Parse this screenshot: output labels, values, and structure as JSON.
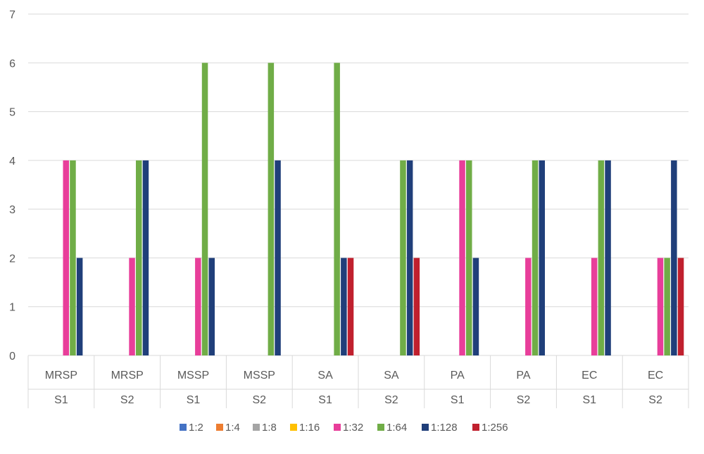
{
  "chart_data": {
    "type": "bar",
    "title": "",
    "xlabel": "",
    "ylabel": "",
    "ylim": [
      0,
      7
    ],
    "yticks": [
      0,
      1,
      2,
      3,
      4,
      5,
      6,
      7
    ],
    "grid": true,
    "legend_position": "bottom",
    "categories": [
      {
        "group": "MRSP",
        "sub": "S1"
      },
      {
        "group": "MRSP",
        "sub": "S2"
      },
      {
        "group": "MSSP",
        "sub": "S1"
      },
      {
        "group": "MSSP",
        "sub": "S2"
      },
      {
        "group": "SA",
        "sub": "S1"
      },
      {
        "group": "SA",
        "sub": "S2"
      },
      {
        "group": "PA",
        "sub": "S1"
      },
      {
        "group": "PA",
        "sub": "S2"
      },
      {
        "group": "EC",
        "sub": "S1"
      },
      {
        "group": "EC",
        "sub": "S2"
      }
    ],
    "series": [
      {
        "name": "1:2",
        "color": "#4472C4",
        "values": [
          0,
          0,
          0,
          0,
          0,
          0,
          0,
          0,
          0,
          0
        ]
      },
      {
        "name": "1:4",
        "color": "#ED7D31",
        "values": [
          0,
          0,
          0,
          0,
          0,
          0,
          0,
          0,
          0,
          0
        ]
      },
      {
        "name": "1:8",
        "color": "#A5A5A5",
        "values": [
          0,
          0,
          0,
          0,
          0,
          0,
          0,
          0,
          0,
          0
        ]
      },
      {
        "name": "1:16",
        "color": "#FFC000",
        "values": [
          0,
          0,
          0,
          0,
          0,
          0,
          0,
          0,
          0,
          0
        ]
      },
      {
        "name": "1:32",
        "color": "#E83E9A",
        "values": [
          4,
          2,
          2,
          0,
          0,
          0,
          4,
          2,
          2,
          2
        ]
      },
      {
        "name": "1:64",
        "color": "#70AD47",
        "values": [
          4,
          4,
          6,
          6,
          6,
          4,
          4,
          4,
          4,
          2
        ]
      },
      {
        "name": "1:128",
        "color": "#203F7A",
        "values": [
          2,
          4,
          2,
          4,
          2,
          4,
          2,
          4,
          4,
          4
        ]
      },
      {
        "name": "1:256",
        "color": "#C0202E",
        "values": [
          0,
          0,
          0,
          0,
          2,
          2,
          0,
          0,
          0,
          2
        ]
      }
    ]
  }
}
